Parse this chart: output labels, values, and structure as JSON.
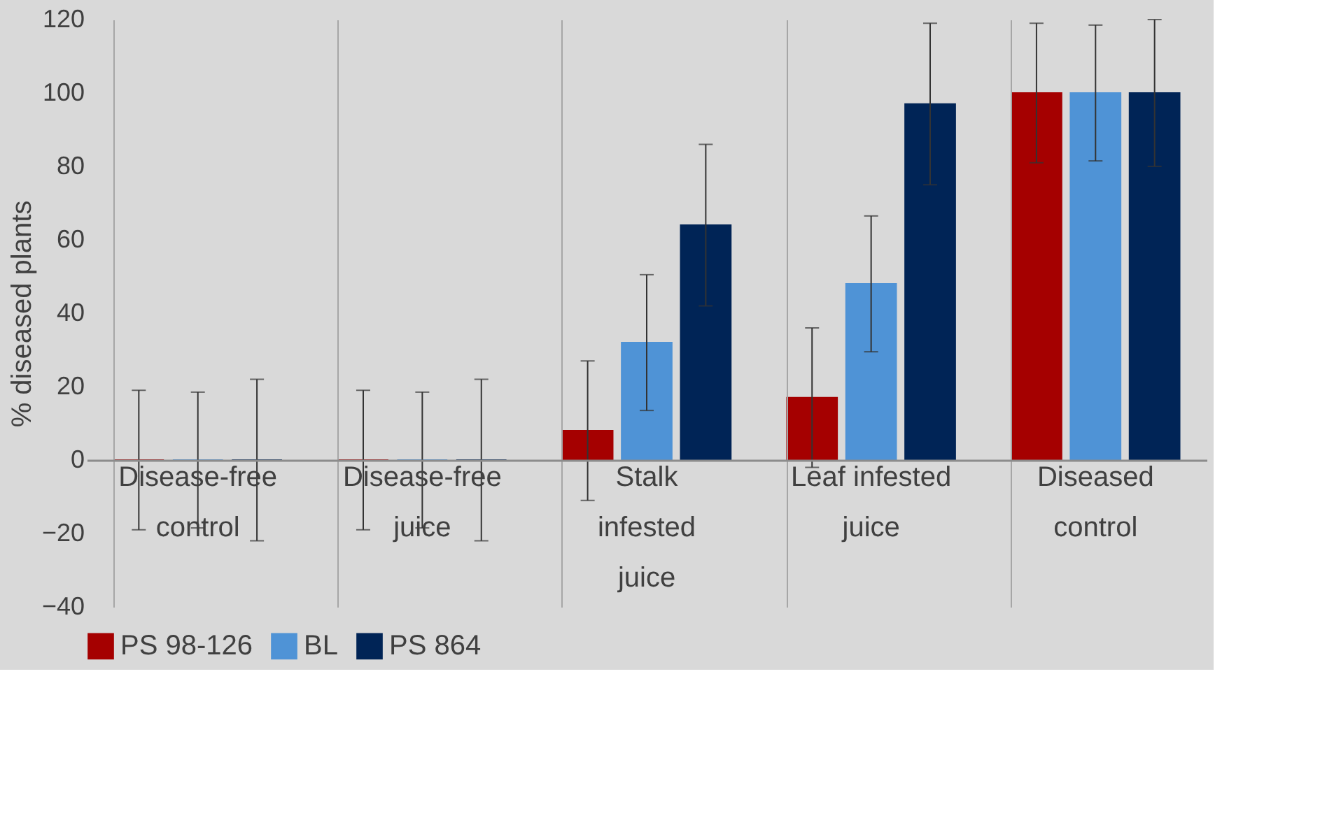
{
  "chart_data": {
    "type": "bar",
    "ylabel": "% diseased plants",
    "categories": [
      "Disease-free control",
      "Disease-free juice",
      "Stalk infested juice",
      "Leaf infested juice",
      "Diseased control"
    ],
    "series": [
      {
        "name": "PS 98-126",
        "color": "#a50000",
        "values": [
          0,
          0,
          8,
          17,
          100
        ],
        "errors": [
          19,
          19,
          19,
          19,
          19
        ]
      },
      {
        "name": "BL",
        "color": "#4f93d6",
        "values": [
          0,
          0,
          32,
          48,
          100
        ],
        "errors": [
          18.5,
          18.5,
          18.5,
          18.5,
          18.5
        ]
      },
      {
        "name": "PS 864",
        "color": "#002456",
        "values": [
          0,
          0,
          64,
          97,
          100
        ],
        "errors": [
          22,
          22,
          22,
          22,
          20
        ]
      }
    ],
    "ylim": [
      -40,
      120
    ],
    "yticks": [
      -40,
      -20,
      0,
      20,
      40,
      60,
      80,
      100,
      120
    ],
    "grid": "x",
    "legend": "bottom"
  }
}
